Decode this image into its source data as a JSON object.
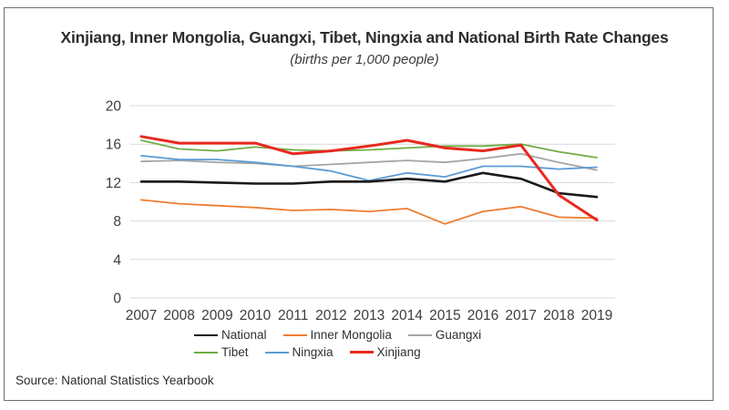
{
  "page": {
    "source": "Source: National Statistics Yearbook",
    "background_color": "#ffffff",
    "frame_border_color": "#6f6f6f"
  },
  "chart_data": {
    "type": "line",
    "title": "Xinjiang, Inner Mongolia, Guangxi, Tibet, Ningxia and National Birth Rate Changes",
    "subtitle": "(births per 1,000 people)",
    "xlabel": "",
    "ylabel": "",
    "x": [
      2007,
      2008,
      2009,
      2010,
      2011,
      2012,
      2013,
      2014,
      2015,
      2016,
      2017,
      2018,
      2019
    ],
    "ylim": [
      0,
      20
    ],
    "yticks": [
      0,
      4,
      8,
      12,
      16,
      20
    ],
    "grid": "horizontal",
    "gridline_color": "#d9d9d9",
    "legend_position": "bottom",
    "legend_rows": [
      [
        "National",
        "Inner Mongolia",
        "Guangxi"
      ],
      [
        "Tibet",
        "Ningxia",
        "Xinjiang"
      ]
    ],
    "series": [
      {
        "name": "National",
        "color": "#1a1a1a",
        "line_width": 2.6,
        "values": [
          12.1,
          12.1,
          12.0,
          11.9,
          11.9,
          12.1,
          12.1,
          12.4,
          12.1,
          13.0,
          12.4,
          10.9,
          10.5
        ]
      },
      {
        "name": "Inner Mongolia",
        "color": "#ED7D31",
        "line_width": 1.8,
        "values": [
          10.2,
          9.8,
          9.6,
          9.4,
          9.1,
          9.2,
          9.0,
          9.3,
          7.7,
          9.0,
          9.5,
          8.4,
          8.3
        ]
      },
      {
        "name": "Guangxi",
        "color": "#A5A5A5",
        "line_width": 1.8,
        "values": [
          14.2,
          14.3,
          14.1,
          14.0,
          13.7,
          13.9,
          14.1,
          14.3,
          14.1,
          14.5,
          15.0,
          14.1,
          13.3
        ]
      },
      {
        "name": "Tibet",
        "color": "#70AD47",
        "line_width": 1.8,
        "values": [
          16.4,
          15.5,
          15.3,
          15.7,
          15.4,
          15.3,
          15.4,
          15.6,
          15.8,
          15.8,
          16.0,
          15.2,
          14.6
        ]
      },
      {
        "name": "Ningxia",
        "color": "#5B9BD5",
        "line_width": 1.8,
        "values": [
          14.8,
          14.4,
          14.4,
          14.1,
          13.7,
          13.2,
          12.2,
          13.0,
          12.6,
          13.7,
          13.7,
          13.4,
          13.6
        ]
      },
      {
        "name": "Xinjiang",
        "color": "#E8291F",
        "line_width": 3,
        "values": [
          16.8,
          16.1,
          16.1,
          16.1,
          15.0,
          15.3,
          15.8,
          16.4,
          15.6,
          15.3,
          15.9,
          10.7,
          8.1
        ]
      }
    ]
  }
}
